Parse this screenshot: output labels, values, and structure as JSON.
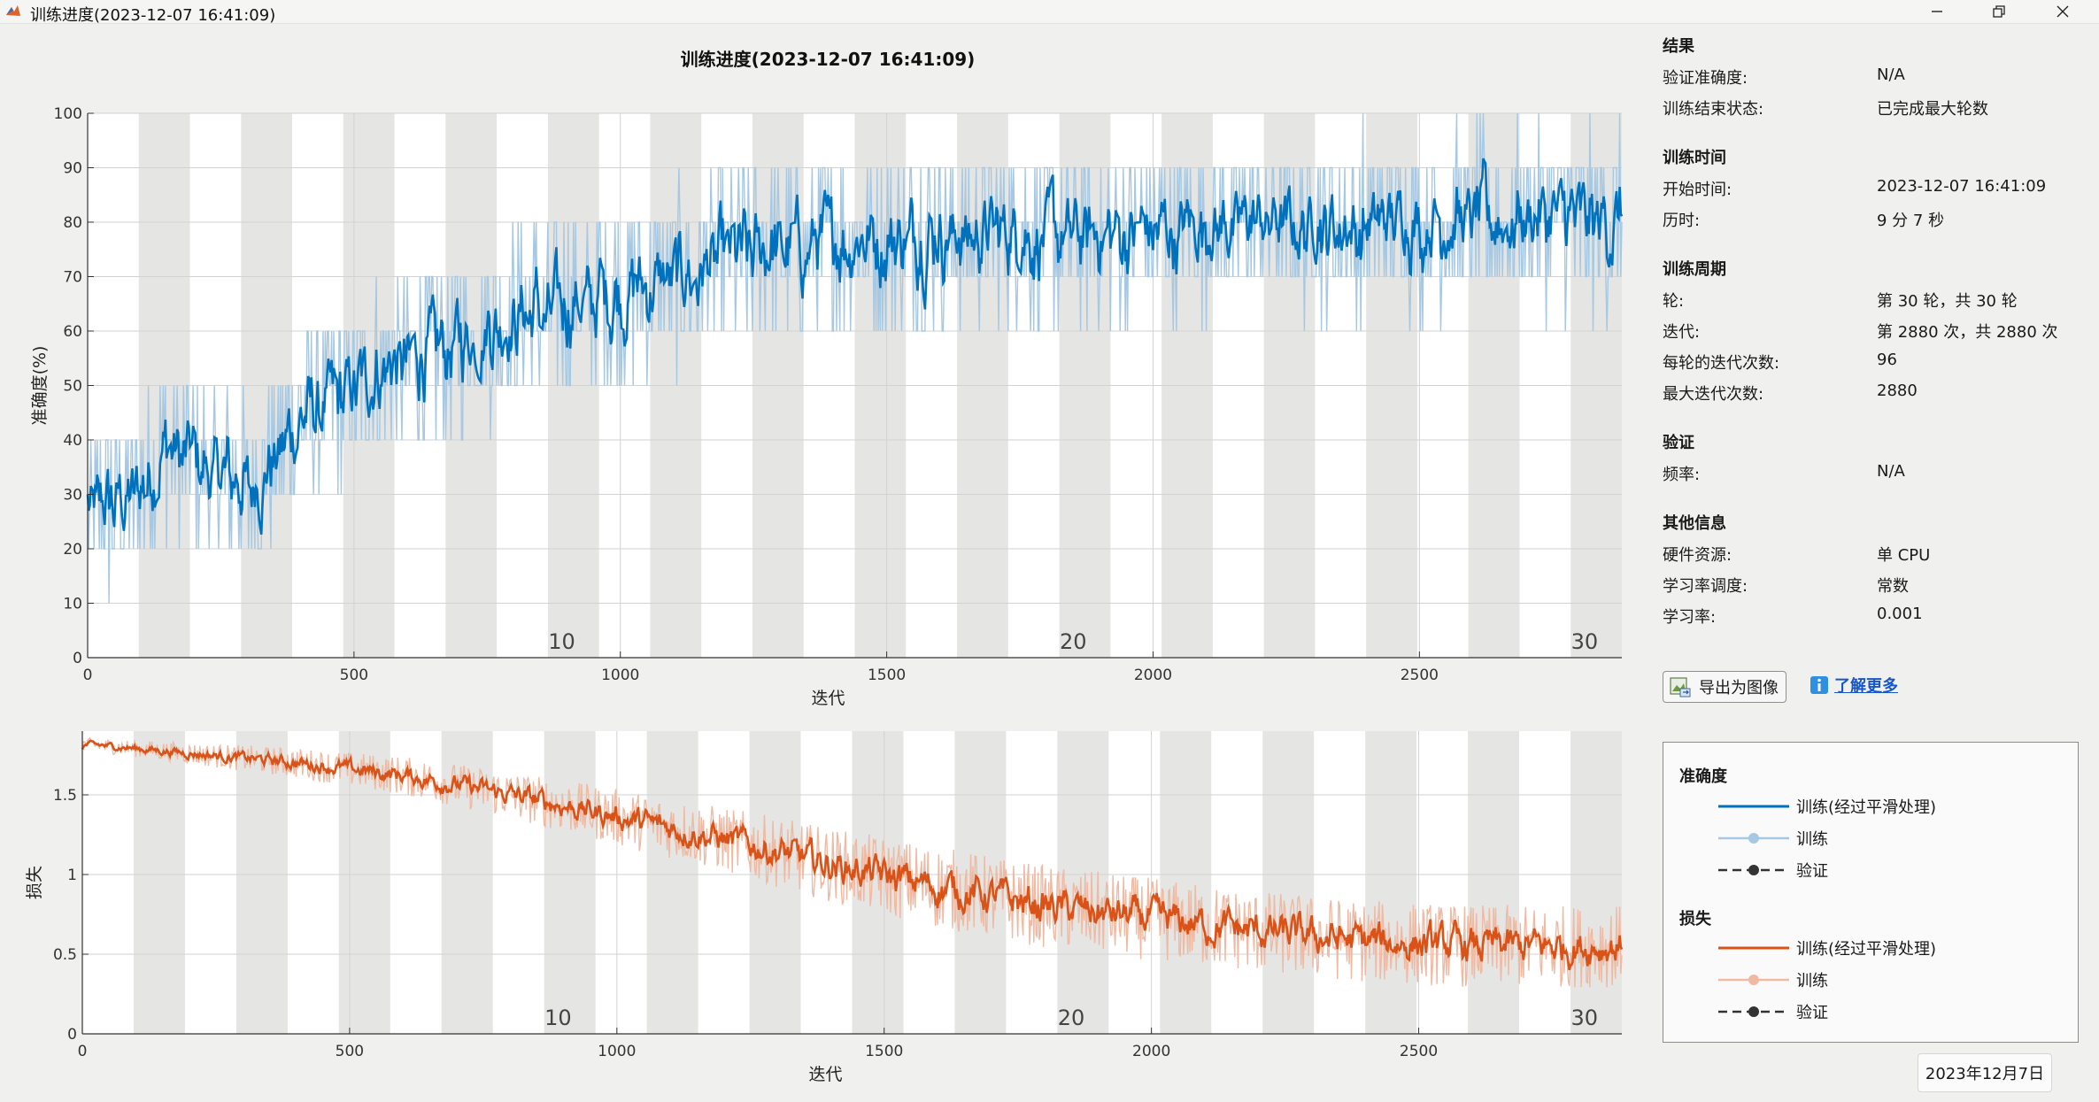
{
  "window": {
    "title": "训练进度(2023-12-07 16:41:09)",
    "buttons": [
      "minimize",
      "restore",
      "close"
    ]
  },
  "plot_title": "训练进度(2023-12-07 16:41:09)",
  "info": {
    "results": {
      "heading": "结果",
      "rows": [
        {
          "label": "验证准确度:",
          "value": "N/A"
        },
        {
          "label": "训练结束状态:",
          "value": "已完成最大轮数"
        }
      ]
    },
    "time": {
      "heading": "训练时间",
      "rows": [
        {
          "label": "开始时间:",
          "value": "2023-12-07 16:41:09"
        },
        {
          "label": "历时:",
          "value": "9 分 7 秒"
        }
      ]
    },
    "cycle": {
      "heading": "训练周期",
      "rows": [
        {
          "label": "轮:",
          "value": "第 30 轮，共 30 轮"
        },
        {
          "label": "迭代:",
          "value": "第 2880 次，共 2880 次"
        },
        {
          "label": "每轮的迭代次数:",
          "value": "96"
        },
        {
          "label": "最大迭代次数:",
          "value": "2880"
        }
      ]
    },
    "validation": {
      "heading": "验证",
      "rows": [
        {
          "label": "频率:",
          "value": "N/A"
        }
      ]
    },
    "other": {
      "heading": "其他信息",
      "rows": [
        {
          "label": "硬件资源:",
          "value": "单 CPU"
        },
        {
          "label": "学习率调度:",
          "value": "常数"
        },
        {
          "label": "学习率:",
          "value": "0.001"
        }
      ]
    }
  },
  "buttons": {
    "export": "导出为图像",
    "learn_more": "了解更多"
  },
  "legend": {
    "accuracy_heading": "准确度",
    "loss_heading": "损失",
    "smoothed": "训练(经过平滑处理)",
    "train": "训练",
    "validation": "验证"
  },
  "taskbar_date": "2023年12月7日",
  "colors": {
    "accuracy": "#0072bd",
    "accuracy_raw": "#a6c8e2",
    "loss": "#d95319",
    "loss_raw": "#efb9a2",
    "epoch_band": "#e5e5e3",
    "validation": "#333333"
  },
  "chart_data": [
    {
      "type": "line",
      "xlabel": "迭代",
      "ylabel": "准确度(%)",
      "xlim": [
        0,
        2880
      ],
      "ylim": [
        0,
        100
      ],
      "xticks": [
        0,
        500,
        1000,
        1500,
        2000,
        2500
      ],
      "yticks": [
        0,
        10,
        20,
        30,
        40,
        50,
        60,
        70,
        80,
        90,
        100
      ],
      "epoch_labels": [
        {
          "epoch": 10,
          "x": 890
        },
        {
          "epoch": 20,
          "x": 1850
        },
        {
          "epoch": 30,
          "x": 2810
        }
      ],
      "iterations_per_epoch": 96,
      "series": [
        {
          "name": "训练(经过平滑处理)",
          "x": [
            0,
            50,
            100,
            150,
            200,
            250,
            300,
            350,
            400,
            500,
            600,
            700,
            800,
            900,
            1000,
            1100,
            1200,
            1300,
            1400,
            1500,
            1600,
            1800,
            2000,
            2200,
            2400,
            2600,
            2880
          ],
          "values": [
            25,
            28,
            30,
            40,
            36,
            33,
            30,
            38,
            43,
            50,
            55,
            58,
            62,
            65,
            68,
            70,
            72,
            75,
            76,
            77,
            78,
            78,
            79,
            80,
            80,
            80,
            80
          ]
        }
      ]
    },
    {
      "type": "line",
      "xlabel": "迭代",
      "ylabel": "损失",
      "xlim": [
        0,
        2880
      ],
      "ylim": [
        0,
        1.9
      ],
      "xticks": [
        0,
        500,
        1000,
        1500,
        2000,
        2500
      ],
      "yticks": [
        0,
        0.5,
        1,
        1.5
      ],
      "epoch_labels": [
        {
          "epoch": 10,
          "x": 890
        },
        {
          "epoch": 20,
          "x": 1850
        },
        {
          "epoch": 30,
          "x": 2810
        }
      ],
      "iterations_per_epoch": 96,
      "series": [
        {
          "name": "训练(经过平滑处理)",
          "x": [
            0,
            200,
            400,
            600,
            800,
            1000,
            1200,
            1400,
            1600,
            1800,
            2000,
            2200,
            2400,
            2600,
            2880
          ],
          "values": [
            1.82,
            1.76,
            1.7,
            1.62,
            1.5,
            1.36,
            1.22,
            1.06,
            0.92,
            0.8,
            0.72,
            0.64,
            0.58,
            0.55,
            0.55
          ]
        }
      ]
    }
  ]
}
